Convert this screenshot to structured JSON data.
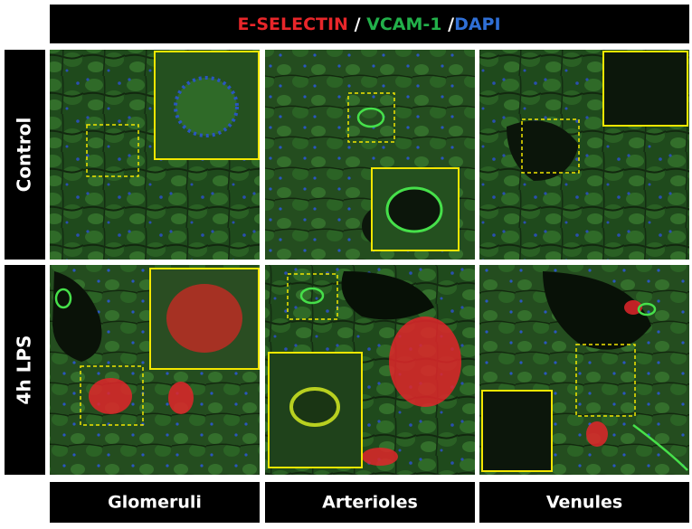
{
  "header": {
    "title_parts": [
      "E-SELECTIN",
      " / ",
      "VCAM-1",
      " /",
      "DAPI"
    ]
  },
  "rows": [
    "Control",
    "4h LPS"
  ],
  "columns": [
    "Glomeruli",
    "Arterioles",
    "Venules"
  ]
}
